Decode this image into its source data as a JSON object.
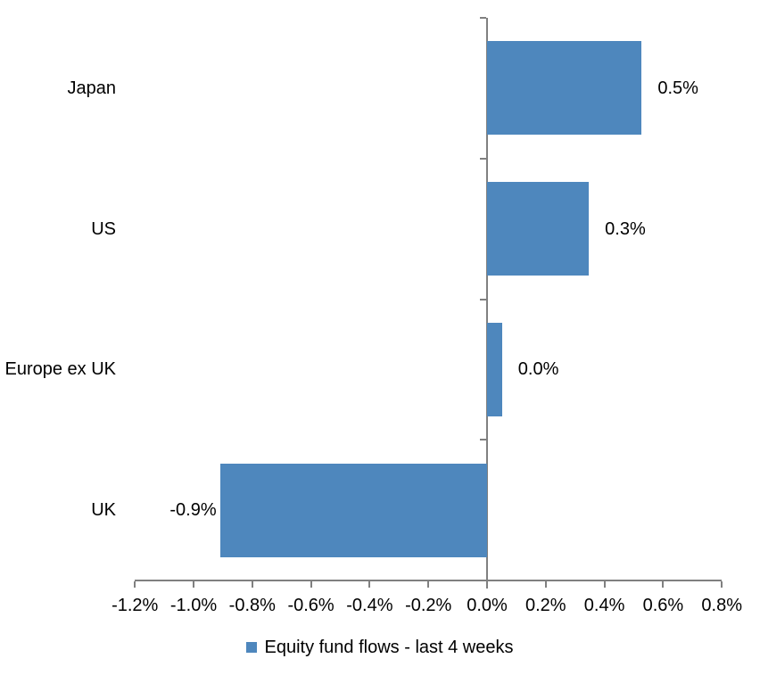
{
  "chart_data": {
    "type": "bar",
    "orientation": "horizontal",
    "title": "",
    "categories": [
      "Japan",
      "US",
      "Europe ex UK",
      "UK"
    ],
    "values": [
      0.5,
      0.3,
      0.0,
      -0.9
    ],
    "value_labels": [
      "0.5%",
      "0.3%",
      "0.0%",
      "-0.9%"
    ],
    "bar_extents": [
      0.527,
      0.347,
      0.051,
      -0.91
    ],
    "series_name": "Equity fund flows - last 4 weeks",
    "xlim": [
      -1.2,
      0.8
    ],
    "x_tick_step": 0.2,
    "x_tick_labels": [
      "-1.2%",
      "-1.0%",
      "-0.8%",
      "-0.6%",
      "-0.4%",
      "-0.2%",
      "0.0%",
      "0.2%",
      "0.4%",
      "0.6%",
      "0.8%"
    ],
    "grid": false,
    "legend_position": "bottom",
    "colors": {
      "bar": "#4E87BD",
      "axis": "#808080",
      "text": "#000000",
      "background": "#FFFFFF"
    }
  }
}
